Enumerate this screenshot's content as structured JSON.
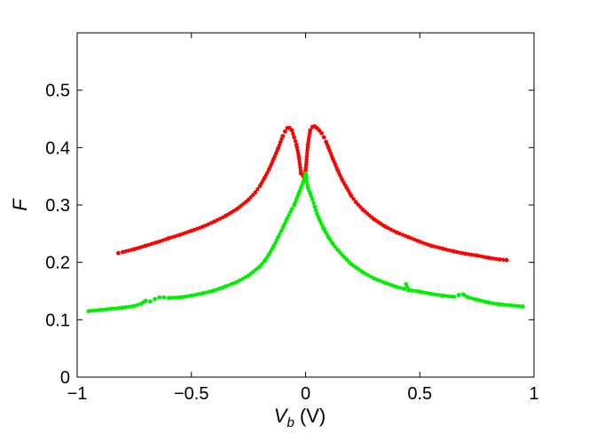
{
  "chart_data": {
    "type": "scatter",
    "xlabel": "V",
    "xlabel_sub": "b",
    "xlabel_unit": " (V)",
    "ylabel": "F",
    "xlim": [
      -1,
      1
    ],
    "ylim": [
      0,
      0.6
    ],
    "xticks": [
      -1,
      -0.5,
      0,
      0.5,
      1
    ],
    "xtick_labels": [
      "−1",
      "−0.5",
      "0",
      "0.5",
      "1"
    ],
    "yticks": [
      0,
      0.1,
      0.2,
      0.3,
      0.4,
      0.5
    ],
    "ytick_labels": [
      "0",
      "0.1",
      "0.2",
      "0.3",
      "0.4",
      "0.5"
    ],
    "grid": false,
    "series": [
      {
        "color": "#ff0000",
        "x": [
          -0.82,
          -0.8,
          -0.75,
          -0.7,
          -0.65,
          -0.6,
          -0.55,
          -0.5,
          -0.45,
          -0.4,
          -0.35,
          -0.3,
          -0.25,
          -0.22,
          -0.2,
          -0.18,
          -0.16,
          -0.14,
          -0.12,
          -0.1,
          -0.09,
          -0.08,
          -0.07,
          -0.06,
          -0.05,
          -0.04,
          -0.03,
          -0.02,
          -0.01,
          0.0,
          0.01,
          0.02,
          0.03,
          0.04,
          0.05,
          0.06,
          0.07,
          0.08,
          0.09,
          0.1,
          0.12,
          0.14,
          0.16,
          0.18,
          0.2,
          0.22,
          0.25,
          0.3,
          0.35,
          0.4,
          0.45,
          0.5,
          0.55,
          0.6,
          0.65,
          0.7,
          0.75,
          0.8,
          0.85,
          0.88
        ],
        "y": [
          0.216,
          0.218,
          0.223,
          0.229,
          0.235,
          0.242,
          0.248,
          0.255,
          0.262,
          0.271,
          0.281,
          0.293,
          0.309,
          0.322,
          0.333,
          0.347,
          0.362,
          0.38,
          0.399,
          0.42,
          0.428,
          0.434,
          0.434,
          0.43,
          0.418,
          0.405,
          0.385,
          0.355,
          0.35,
          0.36,
          0.405,
          0.43,
          0.436,
          0.437,
          0.434,
          0.43,
          0.425,
          0.418,
          0.41,
          0.4,
          0.38,
          0.361,
          0.344,
          0.33,
          0.316,
          0.305,
          0.292,
          0.275,
          0.262,
          0.252,
          0.244,
          0.236,
          0.229,
          0.224,
          0.219,
          0.215,
          0.212,
          0.208,
          0.205,
          0.204
        ]
      },
      {
        "color": "#00ee00",
        "x": [
          -0.95,
          -0.9,
          -0.85,
          -0.8,
          -0.75,
          -0.72,
          -0.7,
          -0.68,
          -0.66,
          -0.64,
          -0.62,
          -0.6,
          -0.55,
          -0.5,
          -0.45,
          -0.4,
          -0.35,
          -0.3,
          -0.25,
          -0.2,
          -0.18,
          -0.16,
          -0.14,
          -0.12,
          -0.1,
          -0.08,
          -0.06,
          -0.05,
          -0.04,
          -0.03,
          -0.02,
          -0.01,
          0.0,
          0.01,
          0.02,
          0.03,
          0.04,
          0.05,
          0.06,
          0.08,
          0.1,
          0.12,
          0.14,
          0.16,
          0.18,
          0.2,
          0.25,
          0.3,
          0.35,
          0.4,
          0.43,
          0.44,
          0.45,
          0.5,
          0.55,
          0.6,
          0.65,
          0.67,
          0.69,
          0.71,
          0.75,
          0.8,
          0.85,
          0.9,
          0.95
        ],
        "y": [
          0.115,
          0.117,
          0.119,
          0.121,
          0.124,
          0.128,
          0.133,
          0.132,
          0.136,
          0.139,
          0.139,
          0.138,
          0.139,
          0.142,
          0.146,
          0.151,
          0.158,
          0.166,
          0.177,
          0.193,
          0.202,
          0.214,
          0.228,
          0.244,
          0.26,
          0.277,
          0.293,
          0.3,
          0.31,
          0.32,
          0.33,
          0.34,
          0.355,
          0.33,
          0.32,
          0.31,
          0.297,
          0.285,
          0.275,
          0.258,
          0.244,
          0.232,
          0.222,
          0.213,
          0.205,
          0.197,
          0.183,
          0.172,
          0.164,
          0.157,
          0.154,
          0.162,
          0.152,
          0.149,
          0.145,
          0.142,
          0.14,
          0.143,
          0.144,
          0.139,
          0.135,
          0.13,
          0.127,
          0.125,
          0.123
        ]
      }
    ]
  }
}
